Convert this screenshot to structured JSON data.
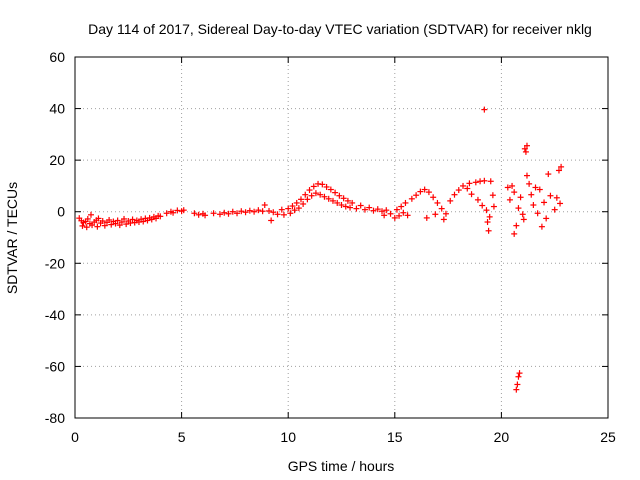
{
  "chart_data": {
    "type": "scatter",
    "title": "Day 114 of 2017, Sidereal Day-to-day VTEC variation (SDTVAR) for receiver nklg",
    "xlabel": "GPS time / hours",
    "ylabel": "SDTVAR / TECUs",
    "xlim": [
      0,
      25
    ],
    "ylim": [
      -80,
      60
    ],
    "xticks": [
      0,
      5,
      10,
      15,
      20,
      25
    ],
    "yticks": [
      -80,
      -60,
      -40,
      -20,
      0,
      20,
      40,
      60
    ],
    "grid": true,
    "marker": "plus",
    "color": "#ff0000",
    "series": [
      {
        "name": "SDTVAR",
        "points": [
          [
            0.2,
            -2.5
          ],
          [
            0.3,
            -3.5
          ],
          [
            0.35,
            -5.5
          ],
          [
            0.4,
            -4.2
          ],
          [
            0.5,
            -3.8
          ],
          [
            0.55,
            -6
          ],
          [
            0.6,
            -2.8
          ],
          [
            0.7,
            -4.6
          ],
          [
            0.75,
            -1.2
          ],
          [
            0.8,
            -5.2
          ],
          [
            0.9,
            -4
          ],
          [
            1.0,
            -3.3
          ],
          [
            1.05,
            -5.8
          ],
          [
            1.1,
            -2.6
          ],
          [
            1.2,
            -4.4
          ],
          [
            1.3,
            -3.6
          ],
          [
            1.4,
            -5.4
          ],
          [
            1.5,
            -4.1
          ],
          [
            1.6,
            -3.2
          ],
          [
            1.7,
            -5
          ],
          [
            1.8,
            -3.8
          ],
          [
            1.9,
            -4.6
          ],
          [
            2.0,
            -3.4
          ],
          [
            2.1,
            -5.2
          ],
          [
            2.2,
            -4
          ],
          [
            2.3,
            -2.8
          ],
          [
            2.4,
            -4.8
          ],
          [
            2.5,
            -3.6
          ],
          [
            2.6,
            -4.4
          ],
          [
            2.7,
            -3
          ],
          [
            2.8,
            -4.2
          ],
          [
            2.9,
            -3.4
          ],
          [
            3.0,
            -4
          ],
          [
            3.1,
            -2.9
          ],
          [
            3.2,
            -3.8
          ],
          [
            3.3,
            -2.6
          ],
          [
            3.4,
            -3.4
          ],
          [
            3.5,
            -2.4
          ],
          [
            3.6,
            -3
          ],
          [
            3.7,
            -2
          ],
          [
            3.8,
            -2.6
          ],
          [
            3.9,
            -1.6
          ],
          [
            4.0,
            -1.8
          ],
          [
            4.3,
            -0.6
          ],
          [
            4.5,
            0
          ],
          [
            4.6,
            -0.4
          ],
          [
            4.8,
            0.5
          ],
          [
            5.0,
            0.2
          ],
          [
            5.1,
            0.6
          ],
          [
            5.6,
            -0.6
          ],
          [
            5.8,
            -1.2
          ],
          [
            6.0,
            -0.8
          ],
          [
            6.1,
            -1.4
          ],
          [
            6.5,
            -0.6
          ],
          [
            6.8,
            -1
          ],
          [
            7.0,
            -0.4
          ],
          [
            7.2,
            -0.8
          ],
          [
            7.4,
            0
          ],
          [
            7.6,
            -0.6
          ],
          [
            7.8,
            0.2
          ],
          [
            8.0,
            -0.2
          ],
          [
            8.2,
            0.4
          ],
          [
            8.4,
            0
          ],
          [
            8.6,
            0.6
          ],
          [
            8.8,
            0.2
          ],
          [
            8.9,
            2.6
          ],
          [
            9.1,
            0.3
          ],
          [
            9.2,
            -3.4
          ],
          [
            9.3,
            -0.2
          ],
          [
            9.5,
            -1
          ],
          [
            9.7,
            0.8
          ],
          [
            9.8,
            -1.2
          ],
          [
            10.0,
            1.2
          ],
          [
            10.1,
            -0.6
          ],
          [
            10.2,
            2.2
          ],
          [
            10.3,
            0.6
          ],
          [
            10.4,
            3.4
          ],
          [
            10.5,
            1.4
          ],
          [
            10.6,
            4.8
          ],
          [
            10.7,
            3
          ],
          [
            10.8,
            6.6
          ],
          [
            10.9,
            4.8
          ],
          [
            11.0,
            8.4
          ],
          [
            11.1,
            6.2
          ],
          [
            11.2,
            9.8
          ],
          [
            11.3,
            7.2
          ],
          [
            11.4,
            10.8
          ],
          [
            11.5,
            6.6
          ],
          [
            11.6,
            10.6
          ],
          [
            11.7,
            5.8
          ],
          [
            11.8,
            9.6
          ],
          [
            11.9,
            5
          ],
          [
            12.0,
            8.6
          ],
          [
            12.1,
            4.2
          ],
          [
            12.2,
            7.4
          ],
          [
            12.3,
            3.4
          ],
          [
            12.4,
            6.2
          ],
          [
            12.5,
            2.6
          ],
          [
            12.6,
            5.2
          ],
          [
            12.7,
            2
          ],
          [
            12.8,
            4.2
          ],
          [
            12.9,
            1.6
          ],
          [
            13.0,
            3.4
          ],
          [
            13.2,
            1.2
          ],
          [
            13.4,
            2.4
          ],
          [
            13.6,
            0.8
          ],
          [
            13.8,
            1.6
          ],
          [
            14.0,
            0.4
          ],
          [
            14.2,
            1
          ],
          [
            14.4,
            0.2
          ],
          [
            14.5,
            -1.4
          ],
          [
            14.6,
            0.6
          ],
          [
            14.8,
            -0.8
          ],
          [
            15.0,
            -2.4
          ],
          [
            15.1,
            0.8
          ],
          [
            15.2,
            -1.6
          ],
          [
            15.3,
            2
          ],
          [
            15.4,
            -0.4
          ],
          [
            15.5,
            3.4
          ],
          [
            15.6,
            -1.4
          ],
          [
            15.8,
            5
          ],
          [
            16.0,
            6.4
          ],
          [
            16.2,
            7.8
          ],
          [
            16.4,
            8.6
          ],
          [
            16.5,
            -2.4
          ],
          [
            16.6,
            7.6
          ],
          [
            16.8,
            5.6
          ],
          [
            16.9,
            -1
          ],
          [
            17.0,
            3.4
          ],
          [
            17.2,
            1.2
          ],
          [
            17.3,
            -3
          ],
          [
            17.4,
            -0.8
          ],
          [
            17.6,
            4.2
          ],
          [
            17.8,
            6.6
          ],
          [
            18.0,
            8.4
          ],
          [
            18.2,
            10
          ],
          [
            18.4,
            9
          ],
          [
            18.5,
            11
          ],
          [
            18.6,
            6.8
          ],
          [
            18.8,
            11.4
          ],
          [
            18.9,
            4.6
          ],
          [
            19.0,
            11.8
          ],
          [
            19.1,
            2.4
          ],
          [
            19.2,
            12
          ],
          [
            19.3,
            0.6
          ],
          [
            19.35,
            -4
          ],
          [
            19.4,
            -7.4
          ],
          [
            19.45,
            -2
          ],
          [
            19.2,
            39.6
          ],
          [
            19.5,
            11.8
          ],
          [
            19.6,
            6.4
          ],
          [
            19.65,
            2
          ],
          [
            20.3,
            9.4
          ],
          [
            20.4,
            4.6
          ],
          [
            20.5,
            10
          ],
          [
            20.6,
            7.6
          ],
          [
            20.6,
            -8.6
          ],
          [
            20.7,
            -5.4
          ],
          [
            20.7,
            -69
          ],
          [
            20.75,
            -67
          ],
          [
            20.8,
            -64
          ],
          [
            20.85,
            -62.6
          ],
          [
            20.8,
            1.4
          ],
          [
            20.9,
            5.6
          ],
          [
            21.0,
            -1
          ],
          [
            21.05,
            -3
          ],
          [
            21.1,
            24.4
          ],
          [
            21.15,
            23.2
          ],
          [
            21.2,
            25.6
          ],
          [
            21.2,
            14
          ],
          [
            21.3,
            10.8
          ],
          [
            21.4,
            6.6
          ],
          [
            21.5,
            2.6
          ],
          [
            21.6,
            9.4
          ],
          [
            21.7,
            -0.6
          ],
          [
            21.8,
            8.6
          ],
          [
            21.9,
            -5.8
          ],
          [
            22.0,
            3.6
          ],
          [
            22.1,
            -2.6
          ],
          [
            22.2,
            14.6
          ],
          [
            22.3,
            6.2
          ],
          [
            22.5,
            0.8
          ],
          [
            22.6,
            5.4
          ],
          [
            22.7,
            16
          ],
          [
            22.8,
            17.4
          ],
          [
            22.75,
            3.2
          ]
        ]
      }
    ]
  }
}
